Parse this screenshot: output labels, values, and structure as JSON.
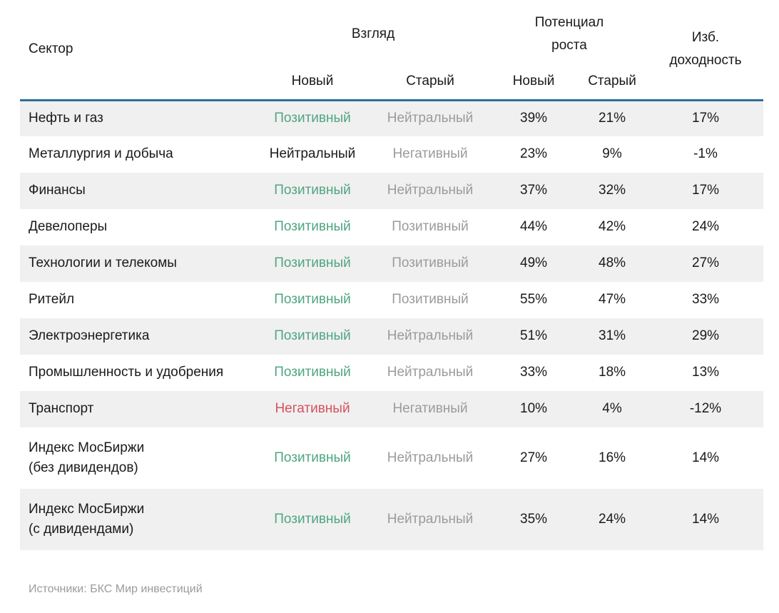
{
  "chart_data": {
    "type": "table",
    "title": "",
    "headers": {
      "sector": "Сектор",
      "view_group": "Взгляд",
      "potential_group": "Потенциал роста",
      "excess": "Изб. доходность",
      "sub_new": "Новый",
      "sub_old": "Старый"
    },
    "columns": [
      "Сектор",
      "Взгляд — Новый",
      "Взгляд — Старый",
      "Потенциал роста — Новый",
      "Потенциал роста — Старый",
      "Изб. доходность"
    ],
    "rows": [
      {
        "sector": "Нефть и газ",
        "sector_line2": "",
        "view_new": "Позитивный",
        "view_old": "Нейтральный",
        "growth_new": "39%",
        "growth_old": "21%",
        "excess": "17%"
      },
      {
        "sector": "Металлургия и добыча",
        "sector_line2": "",
        "view_new": "Нейтральный",
        "view_old": "Негативный",
        "growth_new": "23%",
        "growth_old": "9%",
        "excess": "-1%"
      },
      {
        "sector": "Финансы",
        "sector_line2": "",
        "view_new": "Позитивный",
        "view_old": "Нейтральный",
        "growth_new": "37%",
        "growth_old": "32%",
        "excess": "17%"
      },
      {
        "sector": "Девелоперы",
        "sector_line2": "",
        "view_new": "Позитивный",
        "view_old": "Позитивный",
        "growth_new": "44%",
        "growth_old": "42%",
        "excess": "24%"
      },
      {
        "sector": "Технологии и телекомы",
        "sector_line2": "",
        "view_new": "Позитивный",
        "view_old": "Позитивный",
        "growth_new": "49%",
        "growth_old": "48%",
        "excess": "27%"
      },
      {
        "sector": "Ритейл",
        "sector_line2": "",
        "view_new": "Позитивный",
        "view_old": "Позитивный",
        "growth_new": "55%",
        "growth_old": "47%",
        "excess": "33%"
      },
      {
        "sector": "Электроэнергетика",
        "sector_line2": "",
        "view_new": "Позитивный",
        "view_old": "Нейтральный",
        "growth_new": "51%",
        "growth_old": "31%",
        "excess": "29%"
      },
      {
        "sector": "Промышленность и удобрения",
        "sector_line2": "",
        "view_new": "Позитивный",
        "view_old": "Нейтральный",
        "growth_new": "33%",
        "growth_old": "18%",
        "excess": "13%"
      },
      {
        "sector": "Транспорт",
        "sector_line2": "",
        "view_new": "Негативный",
        "view_old": "Негативный",
        "growth_new": "10%",
        "growth_old": "4%",
        "excess": "-12%"
      },
      {
        "sector": "Индекс МосБиржи",
        "sector_line2": "(без дивидендов)",
        "view_new": "Позитивный",
        "view_old": "Нейтральный",
        "growth_new": "27%",
        "growth_old": "16%",
        "excess": "14%"
      },
      {
        "sector": "Индекс МосБиржи",
        "sector_line2": "(с дивидендами)",
        "view_new": "Позитивный",
        "view_old": "Нейтральный",
        "growth_new": "35%",
        "growth_old": "24%",
        "excess": "14%"
      }
    ]
  },
  "colors": {
    "header_line": "#2d6f9e",
    "row_alt_bg": "#f0f0f0",
    "text": "#1a1a1a",
    "old_column_text": "#9b9b9b",
    "view_colors": {
      "Позитивный": "#4fa582",
      "Нейтральный": "#1a1a1a",
      "Негативный": "#d4525e"
    }
  },
  "footer": {
    "source": "Источники: БКС Мир инвестиций"
  }
}
